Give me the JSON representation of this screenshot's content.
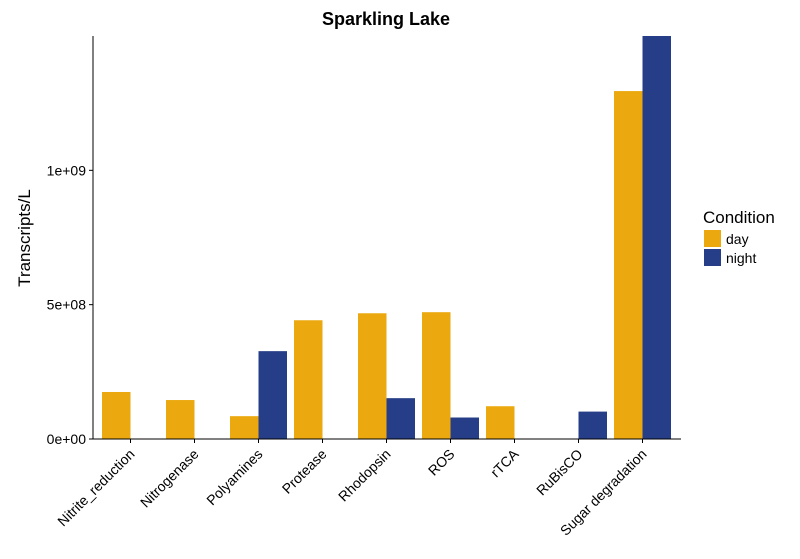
{
  "chart_data": {
    "type": "bar",
    "title": "Sparkling Lake",
    "xlabel": "",
    "ylabel": "Transcripts/L",
    "categories": [
      "Nitrite_reduction",
      "Nitrogenase",
      "Polyamines",
      "Protease",
      "Rhodopsin",
      "ROS",
      "rTCA",
      "RuBisCO",
      "Sugar degradation"
    ],
    "series": [
      {
        "name": "day",
        "color": "#EBA90F",
        "values": [
          175000000,
          145000000,
          85000000,
          442000000,
          468000000,
          472000000,
          122000000,
          null,
          1295000000
        ]
      },
      {
        "name": "night",
        "color": "#263E87",
        "values": [
          null,
          null,
          327000000,
          null,
          152000000,
          80000000,
          null,
          102000000,
          1500000000
        ]
      }
    ],
    "ylim": [
      0,
      1500000000
    ],
    "yticks": [
      0,
      500000000,
      1000000000
    ],
    "ytick_labels": [
      "0e+00",
      "5e+08",
      "1e+09"
    ],
    "legend": {
      "title": "Condition",
      "position": "right"
    },
    "grid": false
  }
}
